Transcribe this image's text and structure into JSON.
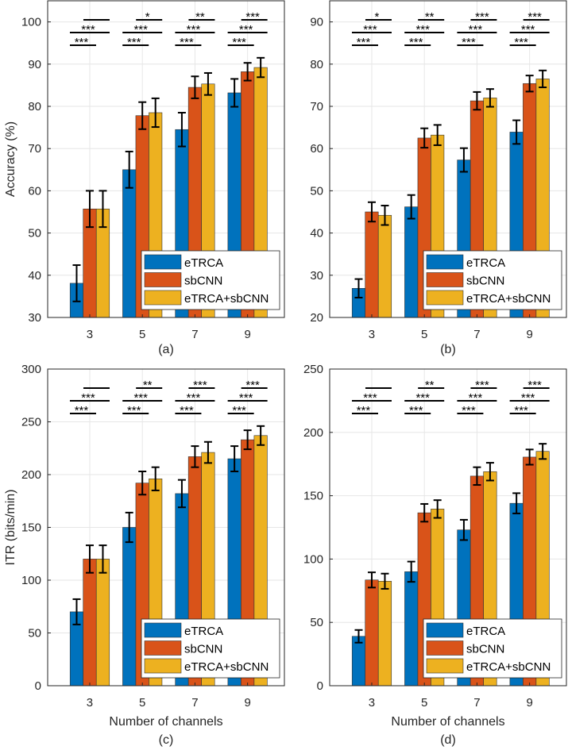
{
  "colors": {
    "eTRCA": "#0072BD",
    "sbCNN": "#D95319",
    "eTRCA+sbCNN": "#EDB120"
  },
  "chart_data": [
    {
      "type": "bar",
      "panel_label": "(a)",
      "ylabel": "Accuracy (%)",
      "xlabel": "",
      "categories": [
        "3",
        "5",
        "7",
        "9"
      ],
      "ylim": [
        30,
        105
      ],
      "yticks": [
        30,
        40,
        50,
        60,
        70,
        80,
        90,
        100
      ],
      "grid": true,
      "legend": "bottom-right",
      "series": [
        {
          "name": "eTRCA",
          "values": [
            38.1,
            65.0,
            74.5,
            83.2
          ],
          "errors": [
            4.3,
            4.3,
            4.0,
            3.3
          ]
        },
        {
          "name": "sbCNN",
          "values": [
            55.7,
            77.8,
            84.5,
            88.2
          ],
          "errors": [
            4.3,
            3.2,
            2.6,
            2.1
          ]
        },
        {
          "name": "eTRCA+sbCNN",
          "values": [
            55.7,
            78.5,
            85.3,
            89.2
          ],
          "errors": [
            4.3,
            3.4,
            2.6,
            2.3
          ]
        }
      ],
      "significance": {
        "sbCNN_vs_combined": [
          "",
          "*",
          "**",
          "***"
        ],
        "eTRCA_vs_combined": [
          "***",
          "***",
          "***",
          "***"
        ],
        "eTRCA_vs_sbCNN": [
          "***",
          "***",
          "***",
          "***"
        ]
      }
    },
    {
      "type": "bar",
      "panel_label": "(b)",
      "ylabel": "",
      "xlabel": "",
      "categories": [
        "3",
        "5",
        "7",
        "9"
      ],
      "ylim": [
        20,
        95
      ],
      "yticks": [
        20,
        30,
        40,
        50,
        60,
        70,
        80,
        90
      ],
      "grid": true,
      "legend": "bottom-right",
      "series": [
        {
          "name": "eTRCA",
          "values": [
            26.9,
            46.2,
            57.3,
            63.9
          ],
          "errors": [
            2.2,
            2.8,
            2.8,
            2.8
          ]
        },
        {
          "name": "sbCNN",
          "values": [
            45.0,
            62.5,
            71.3,
            75.4
          ],
          "errors": [
            2.3,
            2.3,
            2.1,
            1.9
          ]
        },
        {
          "name": "eTRCA+sbCNN",
          "values": [
            44.2,
            63.2,
            72.0,
            76.5
          ],
          "errors": [
            2.3,
            2.4,
            2.1,
            2.0
          ]
        }
      ],
      "significance": {
        "sbCNN_vs_combined": [
          "*",
          "**",
          "***",
          "***"
        ],
        "eTRCA_vs_combined": [
          "***",
          "***",
          "***",
          "***"
        ],
        "eTRCA_vs_sbCNN": [
          "***",
          "***",
          "***",
          "***"
        ]
      }
    },
    {
      "type": "bar",
      "panel_label": "(c)",
      "ylabel": "ITR (bits/min)",
      "xlabel": "Number of channels",
      "categories": [
        "3",
        "5",
        "7",
        "9"
      ],
      "ylim": [
        0,
        300
      ],
      "yticks": [
        0,
        50,
        100,
        150,
        200,
        250,
        300
      ],
      "grid": true,
      "legend": "bottom-right",
      "series": [
        {
          "name": "eTRCA",
          "values": [
            70,
            150,
            182,
            215
          ],
          "errors": [
            12,
            14,
            13,
            12
          ]
        },
        {
          "name": "sbCNN",
          "values": [
            120,
            192,
            217,
            233
          ],
          "errors": [
            13,
            11,
            10,
            9
          ]
        },
        {
          "name": "eTRCA+sbCNN",
          "values": [
            120,
            196,
            221,
            237
          ],
          "errors": [
            13,
            11,
            10,
            9
          ]
        }
      ],
      "significance": {
        "sbCNN_vs_combined": [
          "",
          "**",
          "***",
          "***"
        ],
        "eTRCA_vs_combined": [
          "***",
          "***",
          "***",
          "***"
        ],
        "eTRCA_vs_sbCNN": [
          "***",
          "***",
          "***",
          "***"
        ]
      }
    },
    {
      "type": "bar",
      "panel_label": "(d)",
      "ylabel": "",
      "xlabel": "Number of channels",
      "categories": [
        "3",
        "5",
        "7",
        "9"
      ],
      "ylim": [
        0,
        250
      ],
      "yticks": [
        0,
        50,
        100,
        150,
        200,
        250
      ],
      "grid": true,
      "legend": "bottom-right",
      "series": [
        {
          "name": "eTRCA",
          "values": [
            39,
            90,
            123,
            144
          ],
          "errors": [
            5,
            8,
            8,
            8
          ]
        },
        {
          "name": "sbCNN",
          "values": [
            83.5,
            136.5,
            165.5,
            180.5
          ],
          "errors": [
            6,
            7,
            7,
            6
          ]
        },
        {
          "name": "eTRCA+sbCNN",
          "values": [
            82.5,
            139.5,
            169,
            185
          ],
          "errors": [
            6,
            7,
            7,
            6
          ]
        }
      ],
      "significance": {
        "sbCNN_vs_combined": [
          "",
          "**",
          "***",
          "***"
        ],
        "eTRCA_vs_combined": [
          "***",
          "***",
          "***",
          "***"
        ],
        "eTRCA_vs_sbCNN": [
          "***",
          "***",
          "***",
          "***"
        ]
      }
    }
  ]
}
